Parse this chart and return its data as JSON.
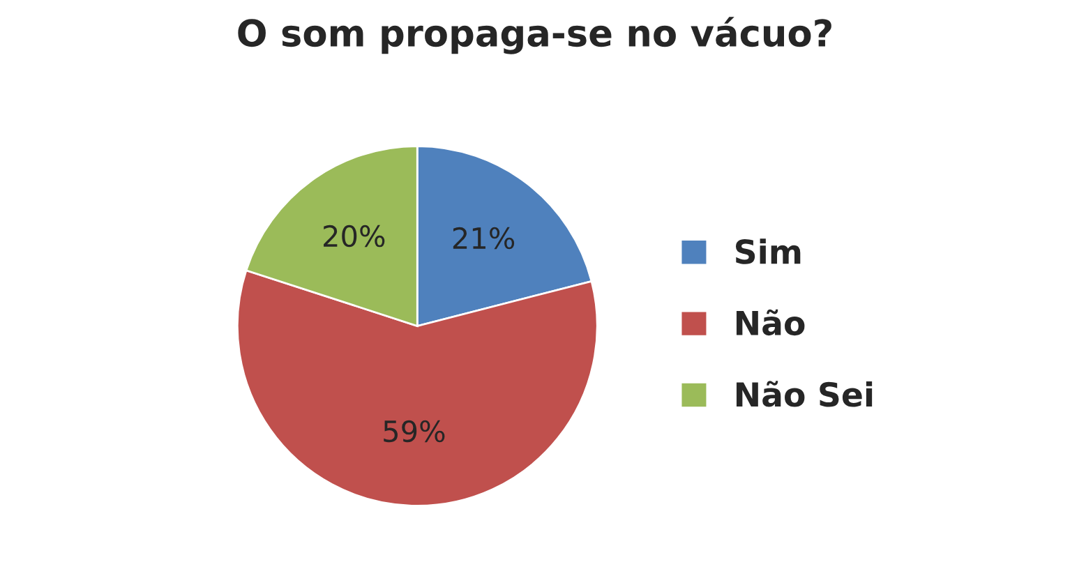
{
  "chart_data": {
    "type": "pie",
    "title": "O som propaga-se no vácuo?",
    "categories": [
      "Sim",
      "Não",
      "Não Sei"
    ],
    "values": [
      21,
      59,
      20
    ],
    "colors": [
      "#4f81bd",
      "#c0504d",
      "#9bbb59"
    ],
    "value_labels": [
      "21%",
      "59%",
      "20%"
    ],
    "legend": "right"
  }
}
